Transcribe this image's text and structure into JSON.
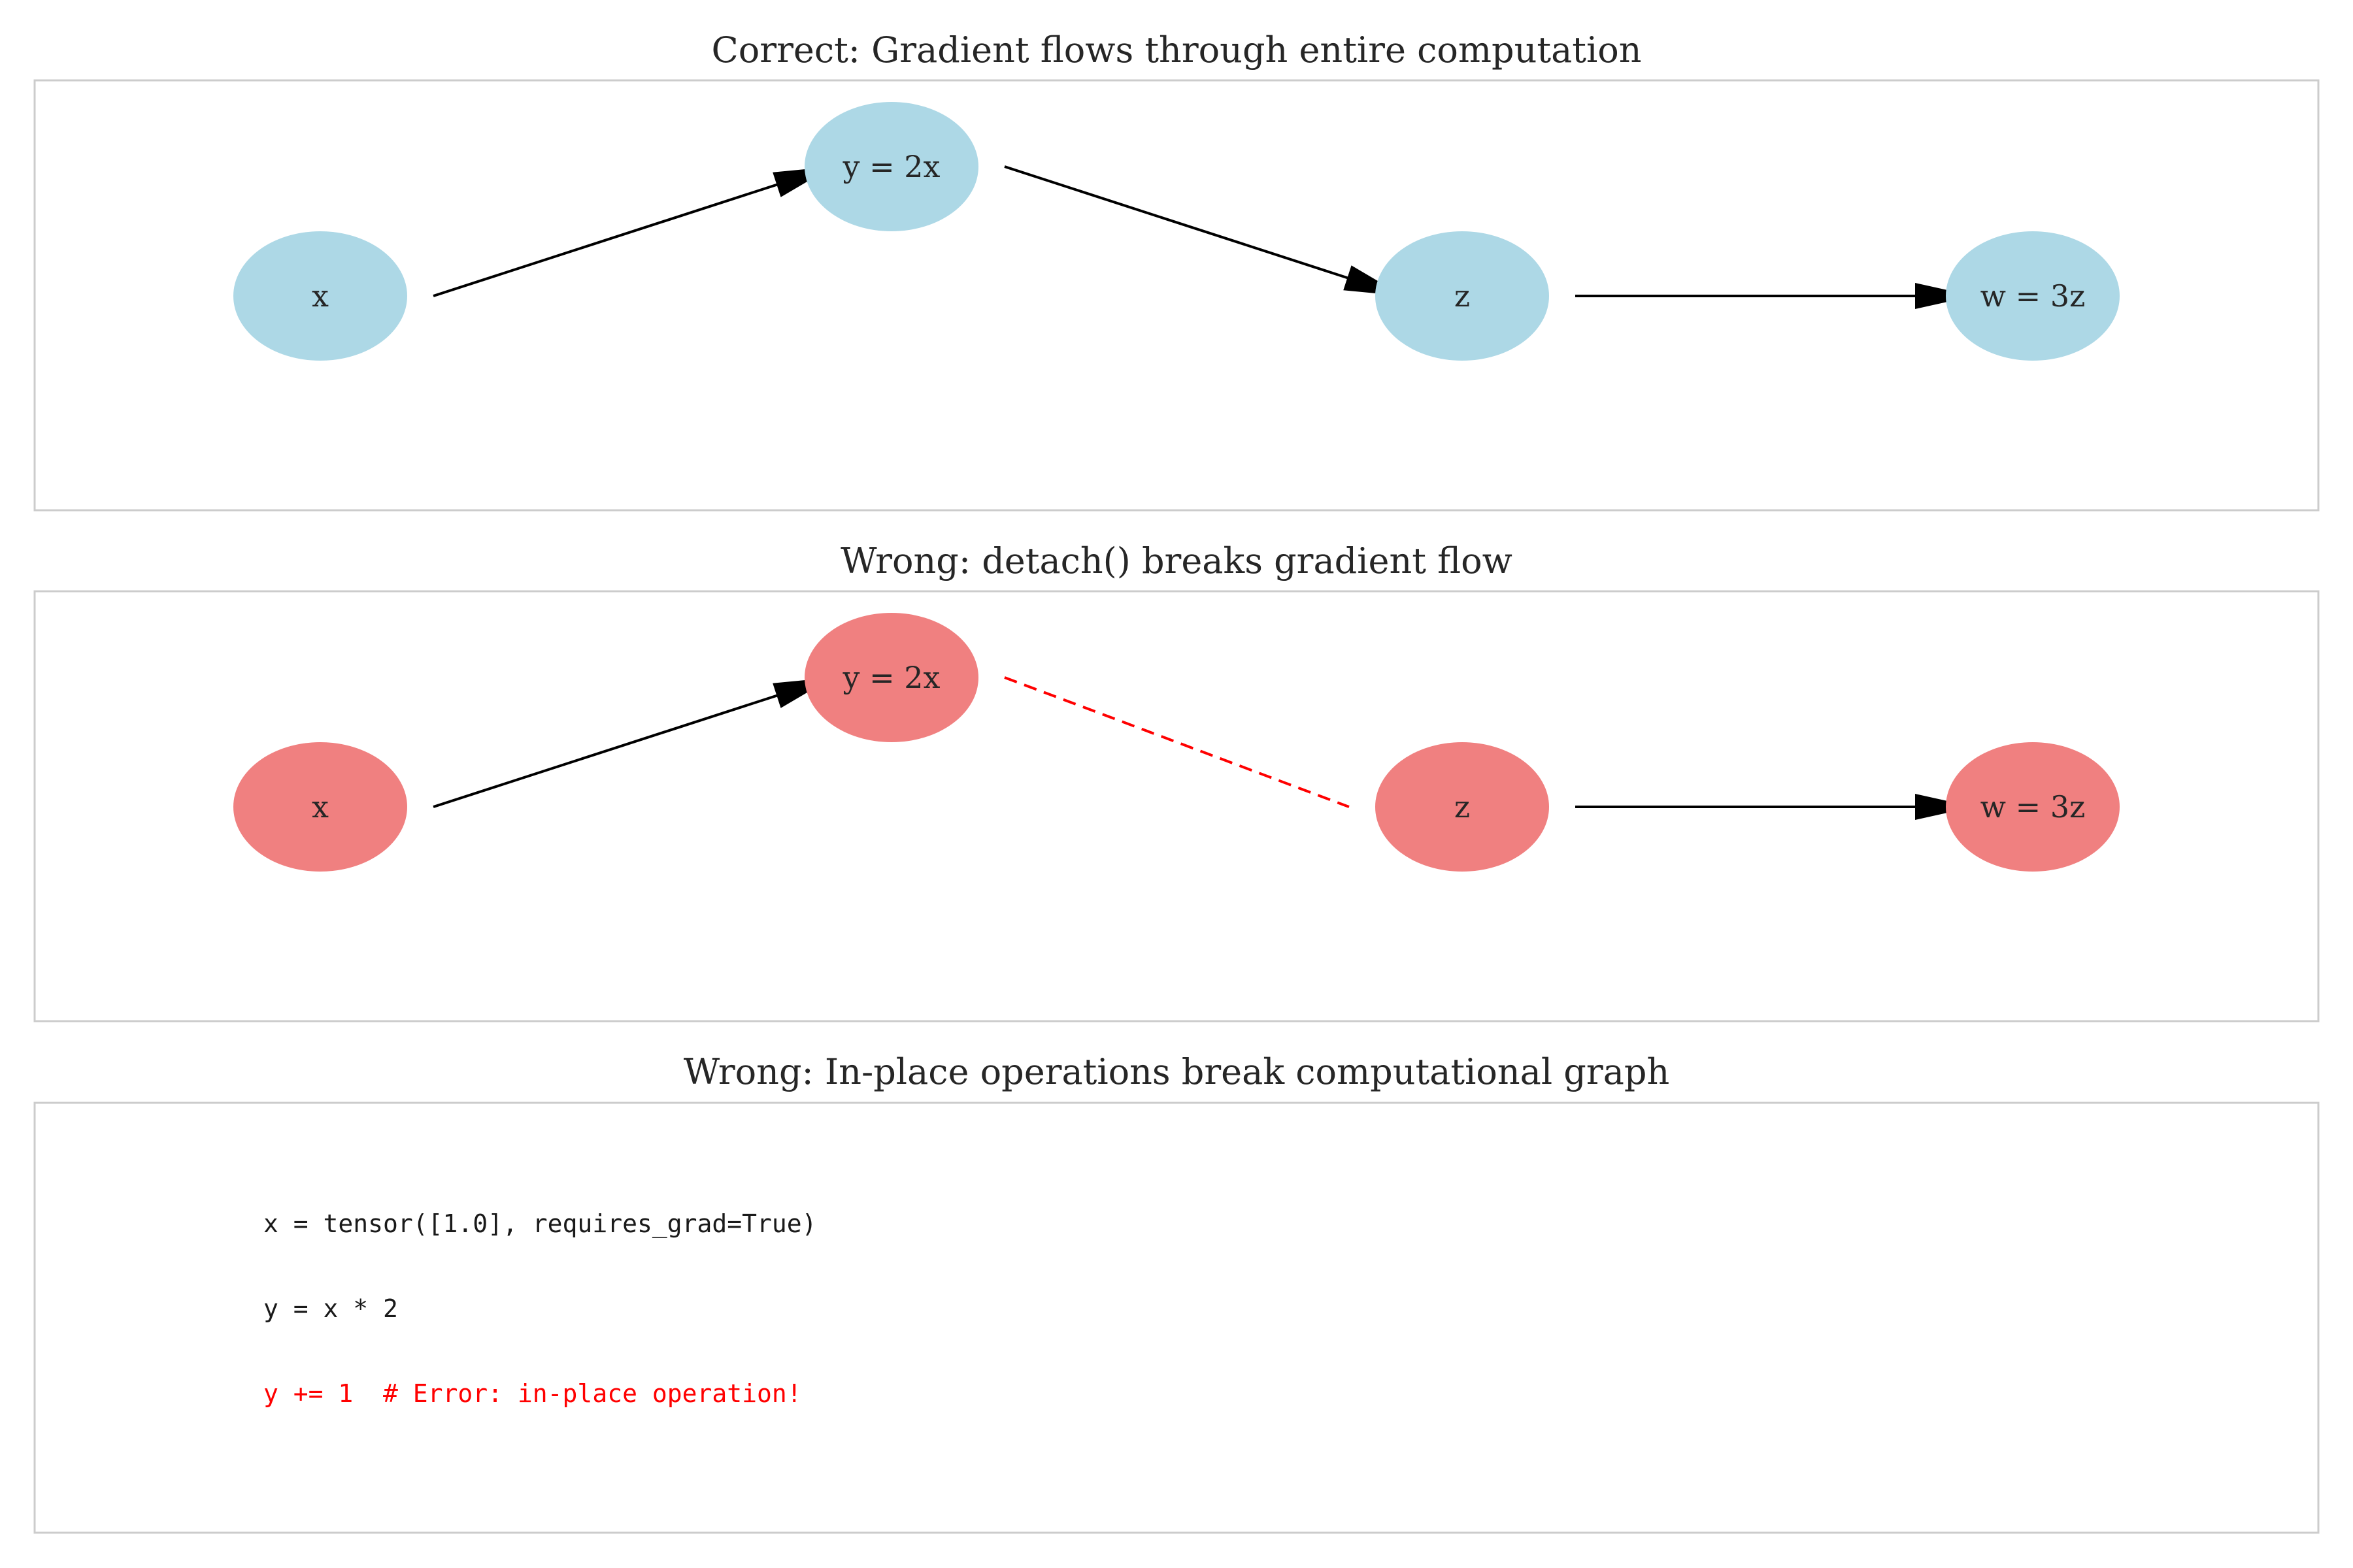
{
  "colors": {
    "node_ok": "#add8e6",
    "node_wrong": "#f08080",
    "edge": "#000000",
    "broken_edge": "#ff0000",
    "frame": "#cccccc",
    "code_normal": "#1a1a1a",
    "code_error": "#ff0000"
  },
  "panels": [
    {
      "title": "Correct: Gradient flows through entire computation",
      "node_color": "#add8e6",
      "nodes": [
        "x",
        "y = 2x",
        "z",
        "w = 3z"
      ],
      "edges": [
        {
          "from": 0,
          "to": 1,
          "style": "arrow"
        },
        {
          "from": 1,
          "to": 2,
          "style": "arrow"
        },
        {
          "from": 2,
          "to": 3,
          "style": "arrow"
        }
      ]
    },
    {
      "title": "Wrong: detach() breaks gradient flow",
      "node_color": "#f08080",
      "nodes": [
        "x",
        "y = 2x",
        "z",
        "w = 3z"
      ],
      "edges": [
        {
          "from": 0,
          "to": 1,
          "style": "arrow"
        },
        {
          "from": 1,
          "to": 2,
          "style": "broken"
        },
        {
          "from": 2,
          "to": 3,
          "style": "arrow"
        }
      ]
    }
  ],
  "code_panel": {
    "title": "Wrong: In-place operations break computational graph",
    "lines": [
      {
        "text": "x = tensor([1.0], requires_grad=True)",
        "error": false
      },
      {
        "text": "y = x * 2",
        "error": false
      },
      {
        "text": "y += 1  # Error: in-place operation!",
        "error": true
      }
    ]
  }
}
